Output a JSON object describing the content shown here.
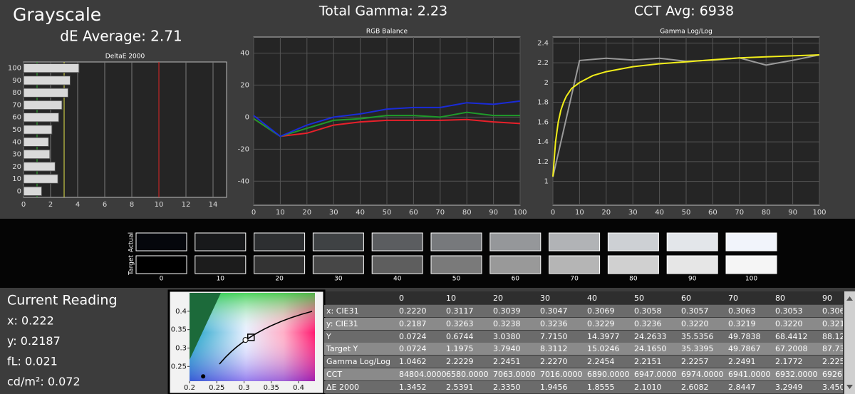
{
  "header": {
    "title": "Grayscale",
    "de_average": "dE Average: 2.71",
    "total_gamma": "Total Gamma: 2.23",
    "cct_avg": "CCT Avg: 6938"
  },
  "chart_data": [
    {
      "type": "bar",
      "title": "DeltaE 2000",
      "categories": [
        0,
        10,
        20,
        30,
        40,
        50,
        60,
        70,
        80,
        90,
        100
      ],
      "values": [
        1.3452,
        2.5391,
        2.335,
        1.9456,
        1.8555,
        2.101,
        2.6082,
        2.8447,
        3.2949,
        3.45,
        4.1
      ],
      "color": "#d9d9d9",
      "xlim": [
        0,
        15
      ],
      "xticks": [
        0,
        2,
        4,
        6,
        8,
        10,
        12,
        14
      ],
      "grid": true,
      "reference_lines": [
        {
          "value": 1,
          "color": "#2fb62f"
        },
        {
          "value": 3,
          "color": "#e8e84a"
        },
        {
          "value": 10,
          "color": "#e02525"
        }
      ]
    },
    {
      "type": "line",
      "title": "RGB Balance",
      "x": [
        0,
        10,
        20,
        30,
        40,
        50,
        60,
        70,
        80,
        90,
        100
      ],
      "series": [
        {
          "color": "#e8202a",
          "values": [
            -1,
            -12,
            -10,
            -5,
            -3,
            -2,
            -2,
            -2,
            -1.5,
            -3,
            -4
          ]
        },
        {
          "color": "#1f9a2a",
          "values": [
            -1,
            -12,
            -7,
            -2,
            -1,
            1,
            1,
            0,
            3,
            1,
            1
          ]
        },
        {
          "color": "#1a2bd8",
          "values": [
            1,
            -12,
            -5,
            0,
            2,
            5,
            6,
            6,
            9,
            8,
            10
          ]
        }
      ],
      "xlim": [
        0,
        100
      ],
      "xticks": [
        0,
        10,
        20,
        30,
        40,
        50,
        60,
        70,
        80,
        90,
        100
      ],
      "ylim": [
        -55,
        50
      ],
      "yticks": [
        -40,
        -20,
        0,
        20,
        40
      ],
      "grid": true
    },
    {
      "type": "line",
      "title": "Gamma Log/Log",
      "x": [
        0,
        10,
        20,
        30,
        40,
        50,
        60,
        70,
        80,
        90,
        100
      ],
      "series": [
        {
          "color": "#9a9a9a",
          "values": [
            1.0462,
            2.2229,
            2.2451,
            2.227,
            2.2454,
            2.2151,
            2.2257,
            2.2491,
            2.1772,
            2.225,
            2.28
          ]
        },
        {
          "color": "#f2ee1a",
          "x": [
            0,
            1,
            2,
            3,
            4,
            5,
            7,
            10,
            15,
            20,
            30,
            40,
            50,
            60,
            70,
            80,
            90,
            100
          ],
          "values": [
            1.05,
            1.4,
            1.6,
            1.72,
            1.8,
            1.86,
            1.94,
            2.0,
            2.07,
            2.11,
            2.16,
            2.19,
            2.21,
            2.23,
            2.25,
            2.26,
            2.27,
            2.28
          ]
        }
      ],
      "xlim": [
        0,
        100
      ],
      "xticks": [
        0,
        10,
        20,
        30,
        40,
        50,
        60,
        70,
        80,
        90,
        100
      ],
      "ylim": [
        0.76,
        2.46
      ],
      "yticks": [
        1,
        1.2,
        1.4,
        1.6,
        1.8,
        2,
        2.2,
        2.4
      ],
      "grid": true
    },
    {
      "type": "scatter",
      "xlim": [
        0.2,
        0.43
      ],
      "xticks": [
        0.2,
        0.25,
        0.3,
        0.35,
        0.4
      ],
      "ylim": [
        0.21,
        0.45
      ],
      "yticks": [
        0.25,
        0.3,
        0.35,
        0.4
      ],
      "points": [
        {
          "x": 0.3127,
          "y": 0.329,
          "shape": "square"
        },
        {
          "x": 0.3026,
          "y": 0.322,
          "shape": "circle"
        },
        {
          "x": 0.225,
          "y": 0.223,
          "shape": "dot"
        }
      ]
    }
  ],
  "swatches": {
    "rows": [
      "Actual",
      "Target"
    ],
    "levels": [
      0,
      10,
      20,
      30,
      40,
      50,
      60,
      70,
      80,
      90,
      100
    ],
    "actual_colors": [
      "#05070c",
      "#18191b",
      "#2d2f31",
      "#3f4244",
      "#5b5d60",
      "#77797c",
      "#95979a",
      "#b1b3b6",
      "#cdd0d4",
      "#e3e6ea",
      "#f1f4fb"
    ],
    "target_colors": [
      "#000000",
      "#1c1c1c",
      "#333333",
      "#474747",
      "#5e5e5e",
      "#7a7a7a",
      "#999999",
      "#b5b5b5",
      "#d0d0d0",
      "#e6e6e6",
      "#f5f5f5"
    ]
  },
  "current_reading": {
    "title": "Current Reading",
    "lines": [
      "x: 0.222",
      "y: 0.2187",
      "fL: 0.021",
      "cd/m²: 0.072"
    ]
  },
  "table": {
    "header": [
      "0",
      "10",
      "20",
      "30",
      "40",
      "50",
      "60",
      "70",
      "80",
      "90"
    ],
    "rows": [
      [
        "x: CIE31",
        "0.2220",
        "0.3117",
        "0.3039",
        "0.3047",
        "0.3069",
        "0.3058",
        "0.3057",
        "0.3063",
        "0.3053",
        "0.306"
      ],
      [
        "y: CIE31",
        "0.2187",
        "0.3263",
        "0.3238",
        "0.3236",
        "0.3229",
        "0.3236",
        "0.3220",
        "0.3219",
        "0.3220",
        "0.321"
      ],
      [
        "Y",
        "0.0724",
        "0.6744",
        "3.0380",
        "7.7150",
        "14.3977",
        "24.2633",
        "35.5356",
        "49.7838",
        "68.4412",
        "88.12"
      ],
      [
        "Target Y",
        "0.0724",
        "1.1975",
        "3.7940",
        "8.3112",
        "15.0246",
        "24.1650",
        "35.3395",
        "49.7867",
        "67.2008",
        "87.73"
      ],
      [
        "Gamma Log/Log",
        "1.0462",
        "2.2229",
        "2.2451",
        "2.2270",
        "2.2454",
        "2.2151",
        "2.2257",
        "2.2491",
        "2.1772",
        "2.225"
      ],
      [
        "CCT",
        "84804.0000",
        "6580.0000",
        "7063.0000",
        "7016.0000",
        "6890.0000",
        "6947.0000",
        "6974.0000",
        "6941.0000",
        "6932.0000",
        "6926"
      ],
      [
        "ΔE 2000",
        "1.3452",
        "2.5391",
        "2.3350",
        "1.9456",
        "1.8555",
        "2.1010",
        "2.6082",
        "2.8447",
        "3.2949",
        "3.450"
      ]
    ]
  }
}
